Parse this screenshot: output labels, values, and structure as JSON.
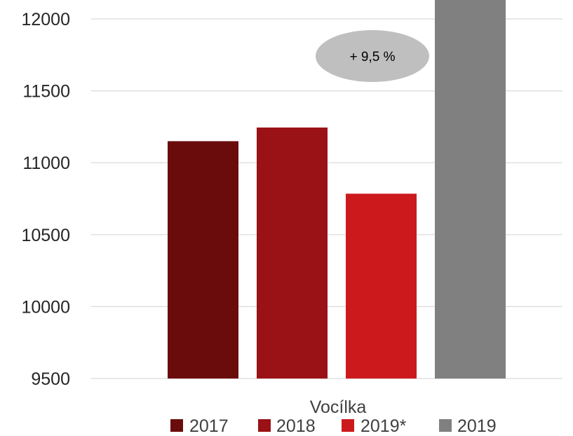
{
  "chart_data": {
    "type": "bar",
    "title": "",
    "xlabel": "",
    "ylabel": "",
    "categories": [
      "Vocílka"
    ],
    "series": [
      {
        "name": "2017",
        "values": [
          11150
        ],
        "color": "#6b0c0c"
      },
      {
        "name": "2018",
        "values": [
          11245
        ],
        "color": "#9a1216"
      },
      {
        "name": "2019*",
        "values": [
          10785
        ],
        "color": "#cc1a1c"
      },
      {
        "name": "2019",
        "values": [
          12200
        ],
        "color": "#808080"
      }
    ],
    "ylim": [
      9500,
      12100
    ],
    "yticks": [
      9500,
      10000,
      10500,
      11000,
      11500,
      12000
    ],
    "grid": true,
    "legend": "bottom",
    "annotations": [
      {
        "text": "+ 9,5 %",
        "shape": "ellipse",
        "color": "#bfbfbf"
      }
    ]
  }
}
